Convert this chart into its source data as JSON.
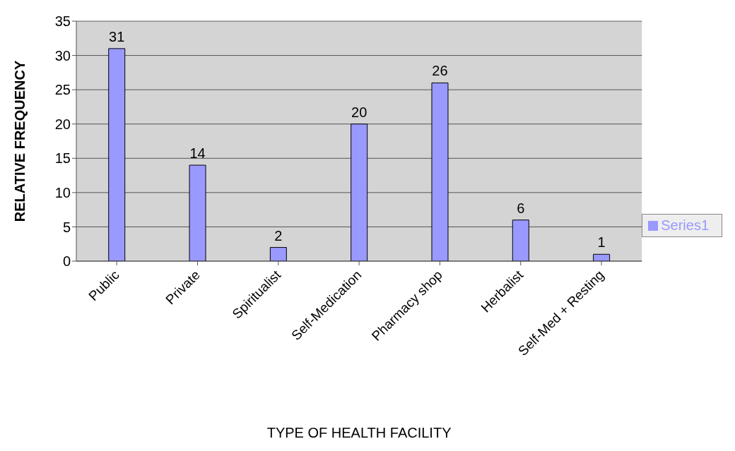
{
  "chart_data": {
    "type": "bar",
    "xlabel": "TYPE OF HEALTH FACILITY",
    "ylabel": "RELATIVE FREQUENCY",
    "categories": [
      "Public",
      "Private",
      "Spiritualist",
      "Self-Medication",
      "Pharmacy shop",
      "Herbalist",
      "Self-Med + Resting"
    ],
    "series": [
      {
        "name": "Series1",
        "color": "#9999ff",
        "values": [
          31,
          14,
          2,
          20,
          26,
          6,
          1
        ]
      }
    ],
    "ylim": [
      0,
      35
    ],
    "yticks": [
      0,
      5,
      10,
      15,
      20,
      25,
      30,
      35
    ],
    "grid": "y",
    "legend": "right",
    "data_labels": true
  }
}
